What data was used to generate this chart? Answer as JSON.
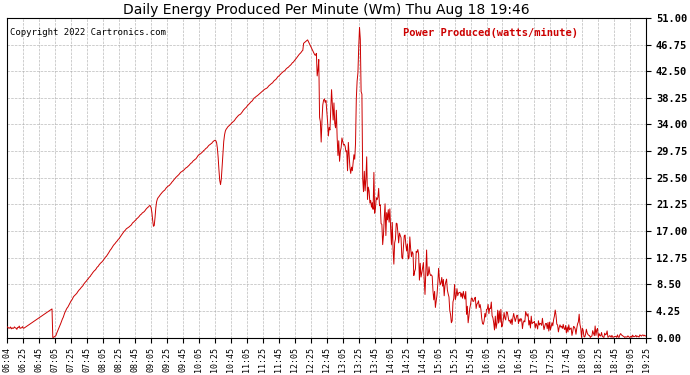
{
  "title": "Daily Energy Produced Per Minute (Wm) Thu Aug 18 19:46",
  "copyright": "Copyright 2022 Cartronics.com",
  "legend_label": "Power Produced(watts/minute)",
  "y_ticks": [
    0.0,
    4.25,
    8.5,
    12.75,
    17.0,
    21.25,
    25.5,
    29.75,
    34.0,
    38.25,
    42.5,
    46.75,
    51.0
  ],
  "y_min": 0.0,
  "y_max": 51.0,
  "line_color": "#cc0000",
  "grid_color": "#aaaaaa",
  "bg_color": "#ffffff",
  "title_color": "#000000",
  "copyright_color": "#000000",
  "legend_color": "#cc0000",
  "x_tick_labels": [
    "06:04",
    "06:25",
    "06:45",
    "07:05",
    "07:25",
    "07:45",
    "08:05",
    "08:25",
    "08:45",
    "09:05",
    "09:25",
    "09:45",
    "10:05",
    "10:25",
    "10:45",
    "11:05",
    "11:25",
    "11:45",
    "12:05",
    "12:25",
    "12:45",
    "13:05",
    "13:25",
    "13:45",
    "14:05",
    "14:25",
    "14:45",
    "15:05",
    "15:25",
    "15:45",
    "16:05",
    "16:25",
    "16:45",
    "17:05",
    "17:25",
    "17:45",
    "18:05",
    "18:25",
    "18:45",
    "19:05",
    "19:25"
  ]
}
